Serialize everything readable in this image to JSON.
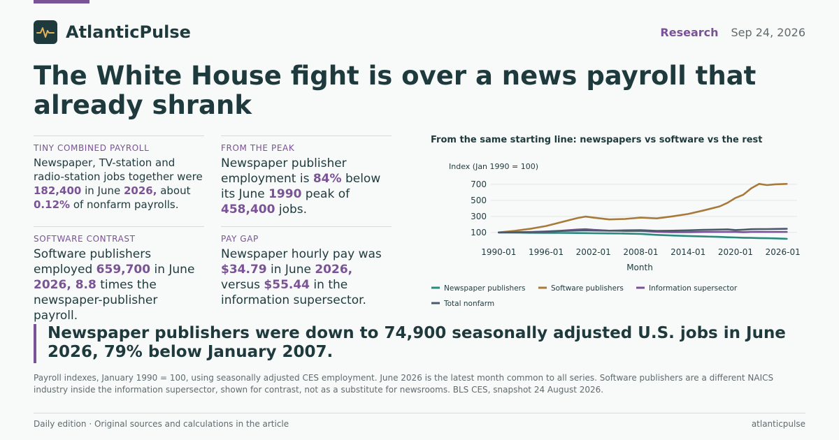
{
  "brand": {
    "name": "AtlanticPulse",
    "logo_icon": "pulse-icon"
  },
  "header": {
    "section": "Research",
    "date": "Sep 24, 2026"
  },
  "headline": "The White House fight is over a news payroll that already shrank",
  "stats": [
    {
      "label": "TINY COMBINED PAYROLL",
      "parts": [
        {
          "t": "Newspaper, TV-station and radio-station jobs together were "
        },
        {
          "t": "182,400",
          "hl": true
        },
        {
          "t": " in June "
        },
        {
          "t": "2026,",
          "hl": true
        },
        {
          "t": " about "
        },
        {
          "t": "0.12%",
          "hl": true
        },
        {
          "t": " of nonfarm payrolls."
        }
      ]
    },
    {
      "label": "FROM THE PEAK",
      "parts": [
        {
          "t": "Newspaper publisher employment is "
        },
        {
          "t": "84%",
          "hl": true
        },
        {
          "t": " below its June "
        },
        {
          "t": "1990",
          "hl": true
        },
        {
          "t": " peak of "
        },
        {
          "t": "458,400",
          "hl": true
        },
        {
          "t": " jobs."
        }
      ]
    },
    {
      "label": "SOFTWARE CONTRAST",
      "parts": [
        {
          "t": "Software publishers employed "
        },
        {
          "t": "659,700",
          "hl": true
        },
        {
          "t": " in June "
        },
        {
          "t": "2026, 8.8",
          "hl": true
        },
        {
          "t": " times the newspaper-publisher payroll."
        }
      ]
    },
    {
      "label": "PAY GAP",
      "parts": [
        {
          "t": "Newspaper hourly pay was "
        },
        {
          "t": "$34.79",
          "hl": true
        },
        {
          "t": " in June "
        },
        {
          "t": "2026,",
          "hl": true
        },
        {
          "t": " versus "
        },
        {
          "t": "$55.44",
          "hl": true
        },
        {
          "t": " in the information supersector."
        }
      ]
    }
  ],
  "chart_data": {
    "type": "line",
    "title": "From the same starting line: newspapers vs software vs the rest",
    "ylabel": "Index (Jan 1990 = 100)",
    "xlabel": "Month",
    "x": [
      1990.0,
      1992.0,
      1994.0,
      1996.0,
      1998.0,
      2000.0,
      2001.0,
      2002.0,
      2004.0,
      2006.0,
      2008.0,
      2010.0,
      2012.0,
      2014.0,
      2016.0,
      2018.0,
      2019.0,
      2020.0,
      2021.0,
      2022.0,
      2023.0,
      2024.0,
      2025.0,
      2026.5
    ],
    "x_ticks": [
      1990,
      1996,
      2002,
      2008,
      2014,
      2020,
      2026
    ],
    "x_tick_labels": [
      "1990-01",
      "1996-01",
      "2002-01",
      "2008-01",
      "2014-01",
      "2020-01",
      "2026-01"
    ],
    "y_ticks": [
      100,
      300,
      500,
      700
    ],
    "ylim": [
      20,
      760
    ],
    "xlim": [
      1989.0,
      2027.8
    ],
    "grid": true,
    "legend": "bottom",
    "series": [
      {
        "name": "Newspaper publishers",
        "color": "#2a8a80",
        "values": [
          100,
          98,
          96,
          95,
          94,
          92,
          91,
          90,
          88,
          86,
          82,
          70,
          62,
          56,
          50,
          44,
          40,
          37,
          34,
          32,
          30,
          28,
          26,
          21
        ]
      },
      {
        "name": "Software publishers",
        "color": "#a87a3a",
        "values": [
          100,
          120,
          145,
          180,
          230,
          280,
          298,
          285,
          262,
          268,
          285,
          275,
          300,
          330,
          375,
          425,
          470,
          530,
          570,
          650,
          705,
          690,
          700,
          705
        ]
      },
      {
        "name": "Information supersector",
        "color": "#7a5296",
        "values": [
          100,
          102,
          105,
          112,
          122,
          136,
          140,
          132,
          122,
          118,
          118,
          108,
          104,
          104,
          106,
          106,
          106,
          106,
          104,
          106,
          108,
          106,
          106,
          106
        ]
      },
      {
        "name": "Total nonfarm",
        "color": "#4a5a6a",
        "values": [
          100,
          100,
          104,
          110,
          118,
          124,
          126,
          124,
          122,
          126,
          128,
          120,
          122,
          126,
          132,
          136,
          138,
          130,
          134,
          140,
          142,
          142,
          144,
          145
        ]
      }
    ]
  },
  "callout": "Newspaper publishers were down to 74,900 seasonally adjusted U.S. jobs in June 2026, 79% below January 2007.",
  "note": "Payroll indexes, January 1990 = 100, using seasonally adjusted CES employment. June 2026 is the latest month common to all series. Software publishers are a different NAICS industry inside the information supersector, shown for contrast, not as a substitute for newsrooms. BLS CES, snapshot 24 August 2026.",
  "footer": {
    "left": "Daily edition · Original sources and calculations in the article",
    "right": "atlanticpulse"
  },
  "colors": {
    "accent": "#7a5296",
    "ink": "#1f3a3d",
    "muted": "#5f6b6d"
  }
}
